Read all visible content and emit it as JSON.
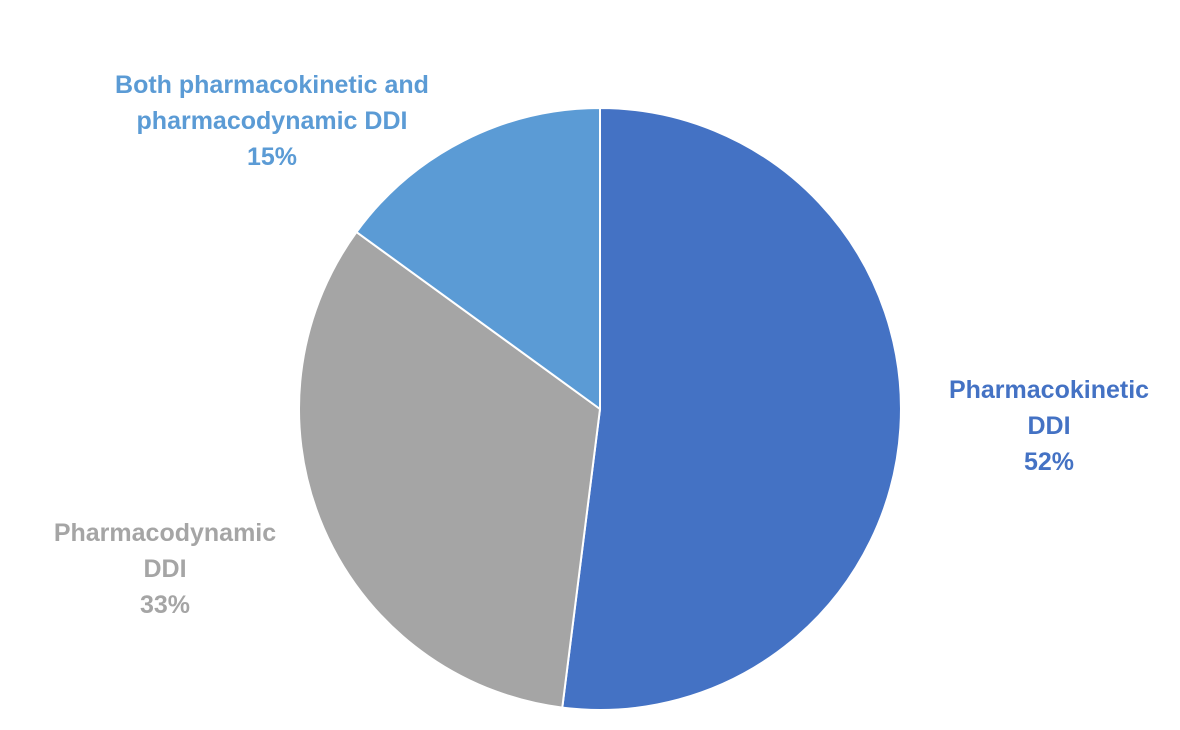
{
  "chart_data": {
    "type": "pie",
    "title": "",
    "slices": [
      {
        "label_lines": [
          "Pharmacokinetic",
          "DDI"
        ],
        "percent_label": "52%",
        "value": 52,
        "color": "#4472C4"
      },
      {
        "label_lines": [
          "Pharmacodynamic",
          "DDI"
        ],
        "percent_label": "33%",
        "value": 33,
        "color": "#A5A5A5"
      },
      {
        "label_lines": [
          "Both pharmacokinetic and",
          "pharmacodynamic DDI"
        ],
        "percent_label": "15%",
        "value": 15,
        "color": "#5B9BD5"
      }
    ],
    "start_angle_deg": 0,
    "direction": "clockwise",
    "slice_border_color": "#FFFFFF"
  }
}
